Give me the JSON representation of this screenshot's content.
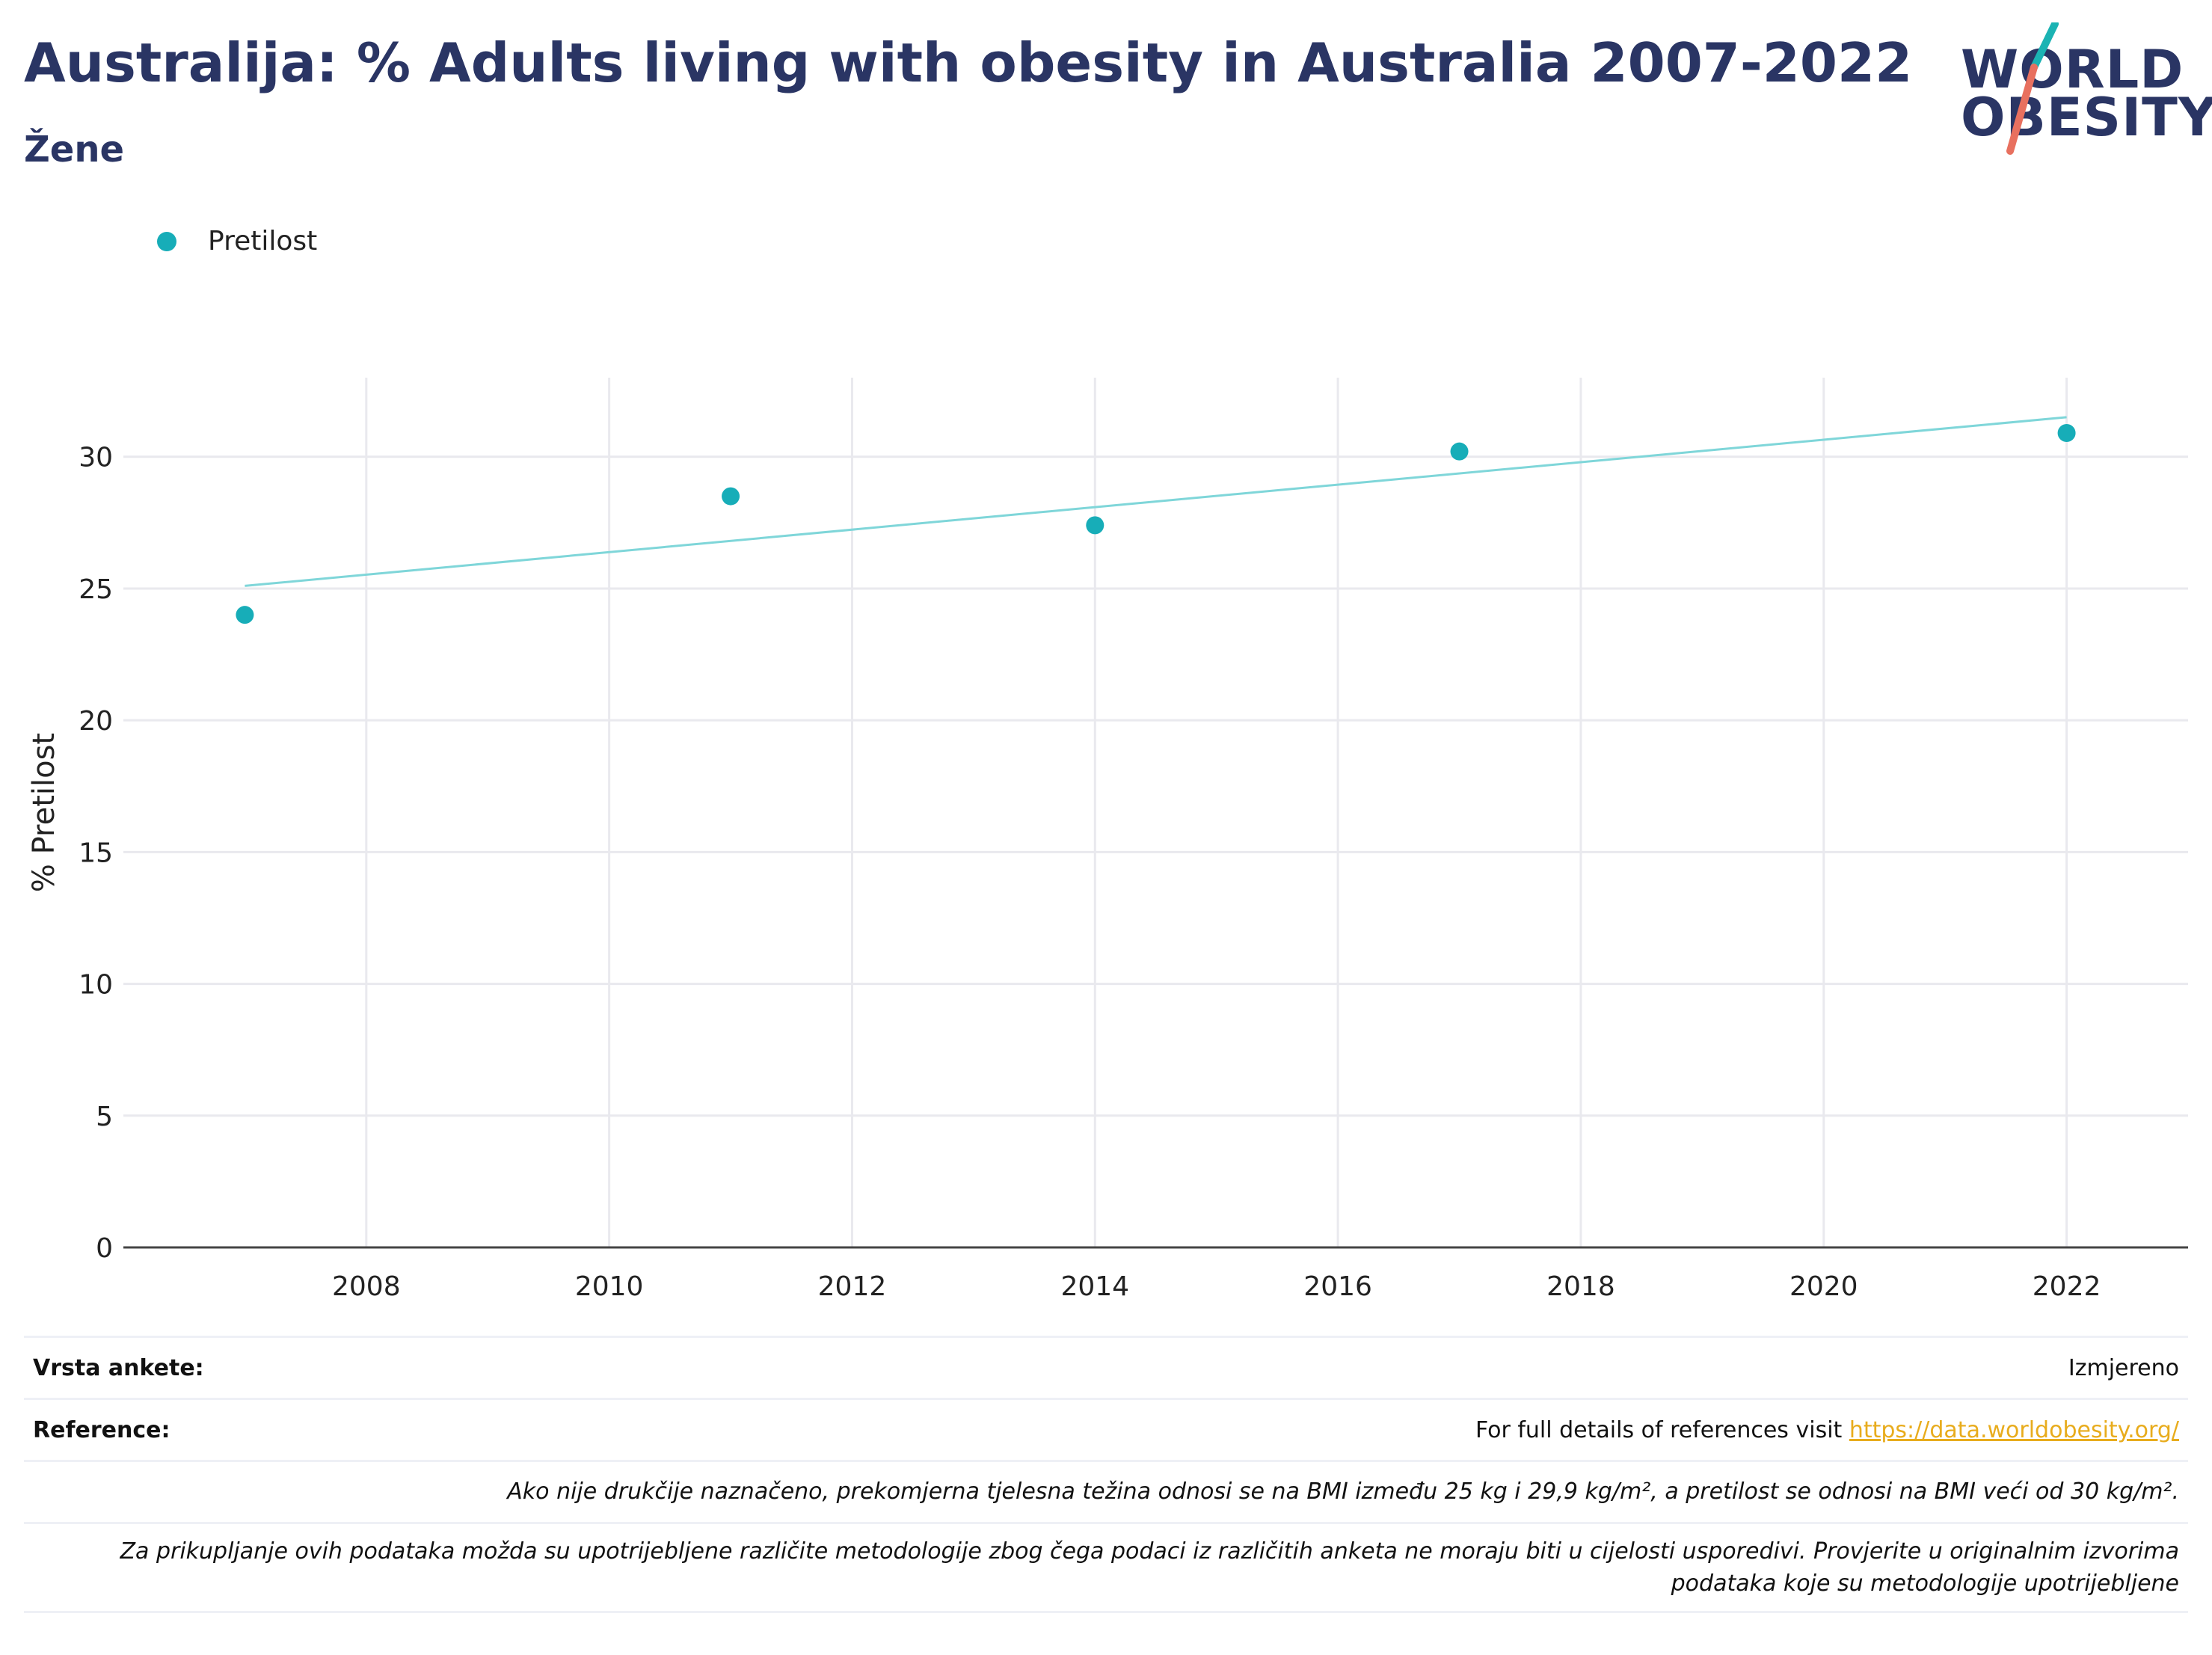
{
  "header": {
    "title": "Australija: % Adults living with obesity in Australia 2007-2022",
    "subtitle": "Žene"
  },
  "logo": {
    "line1": "WORLD",
    "line2": "OBESITY",
    "accent_teal": "#1bb3b3",
    "accent_coral": "#e8705f"
  },
  "legend": {
    "label": "Pretilost"
  },
  "colors": {
    "series": "#17adb8",
    "trend": "#7fd6d9",
    "grid": "#e9e9ee",
    "axis": "#444444",
    "title": "#2a3564",
    "link": "#e8ac1d"
  },
  "chart_data": {
    "type": "scatter",
    "ylabel": "% Pretilost",
    "xlabel": "",
    "xlim": [
      2006,
      2023
    ],
    "ylim": [
      0,
      33
    ],
    "xticks": [
      2008,
      2010,
      2012,
      2014,
      2016,
      2018,
      2020,
      2022
    ],
    "yticks": [
      0,
      5,
      10,
      15,
      20,
      25,
      30
    ],
    "grid": true,
    "legend_position": "top-left",
    "series": [
      {
        "name": "Pretilost",
        "x": [
          2007,
          2011,
          2014,
          2017,
          2022
        ],
        "y": [
          24.0,
          28.5,
          27.4,
          30.2,
          30.9
        ]
      }
    ],
    "trendline": {
      "x": [
        2007,
        2022
      ],
      "y": [
        25.1,
        31.5
      ]
    }
  },
  "footer": {
    "survey_label": "Vrsta ankete:",
    "survey_value": "Izmjereno",
    "reference_label": "Reference:",
    "reference_text": "For full details of references visit ",
    "reference_link": "https://data.worldobesity.org/",
    "note1": "Ako nije drukčije naznačeno, prekomjerna tjelesna težina odnosi se na BMI između 25 kg i 29,9 kg/m², a pretilost se odnosi na BMI veći od 30 kg/m².",
    "note2": "Za prikupljanje ovih podataka možda su upotrijebljene različite metodologije zbog čega podaci iz različitih anketa ne moraju biti u cijelosti usporedivi. Provjerite u originalnim izvorima podataka koje su metodologije upotrijebljene"
  }
}
